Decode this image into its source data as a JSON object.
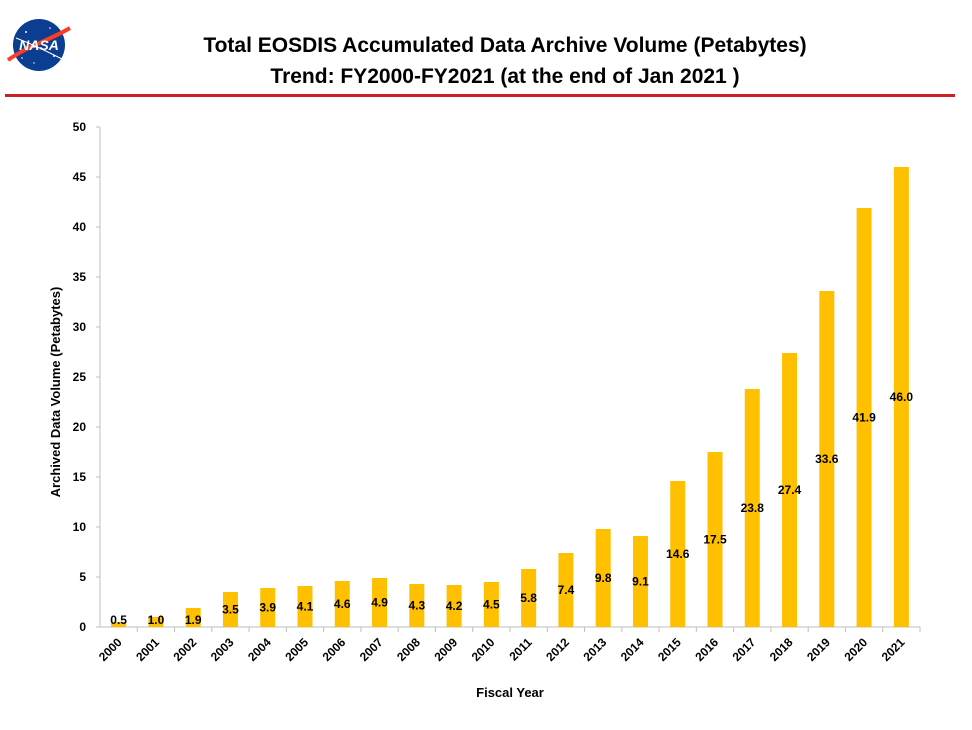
{
  "title": {
    "line1": "Total EOSDIS Accumulated Data Archive Volume (Petabytes)",
    "line2": "Trend: FY2000-FY2021 (at the end of Jan 2021 )"
  },
  "logo": {
    "text": "NASA",
    "icon": "nasa-meatball-logo"
  },
  "colors": {
    "bar": "#FFC000",
    "rule": "#CC1F1F",
    "axis": "#BFBFBF"
  },
  "chart_data": {
    "type": "bar",
    "xlabel": "Fiscal Year",
    "ylabel": "Archived Data Volume (Petabytes)",
    "ylim": [
      0,
      50
    ],
    "yticks": [
      0,
      5,
      10,
      15,
      20,
      25,
      30,
      35,
      40,
      45,
      50
    ],
    "grid": false,
    "categories": [
      "2000",
      "2001",
      "2002",
      "2003",
      "2004",
      "2005",
      "2006",
      "2007",
      "2008",
      "2009",
      "2010",
      "2011",
      "2012",
      "2013",
      "2014",
      "2015",
      "2016",
      "2017",
      "2018",
      "2019",
      "2020",
      "2021"
    ],
    "values": [
      0.5,
      1.0,
      1.9,
      3.5,
      3.9,
      4.1,
      4.6,
      4.9,
      4.3,
      4.2,
      4.5,
      5.8,
      7.4,
      9.8,
      9.1,
      14.6,
      17.5,
      23.8,
      27.4,
      33.6,
      41.9,
      46.0
    ],
    "labels": [
      "0.5",
      "1.0",
      "1.9",
      "3.5",
      "3.9",
      "4.1",
      "4.6",
      "4.9",
      "4.3",
      "4.2",
      "4.5",
      "5.8",
      "7.4",
      "9.8",
      "9.1",
      "14.6",
      "17.5",
      "23.8",
      "27.4",
      "33.6",
      "41.9",
      "46.0"
    ]
  }
}
